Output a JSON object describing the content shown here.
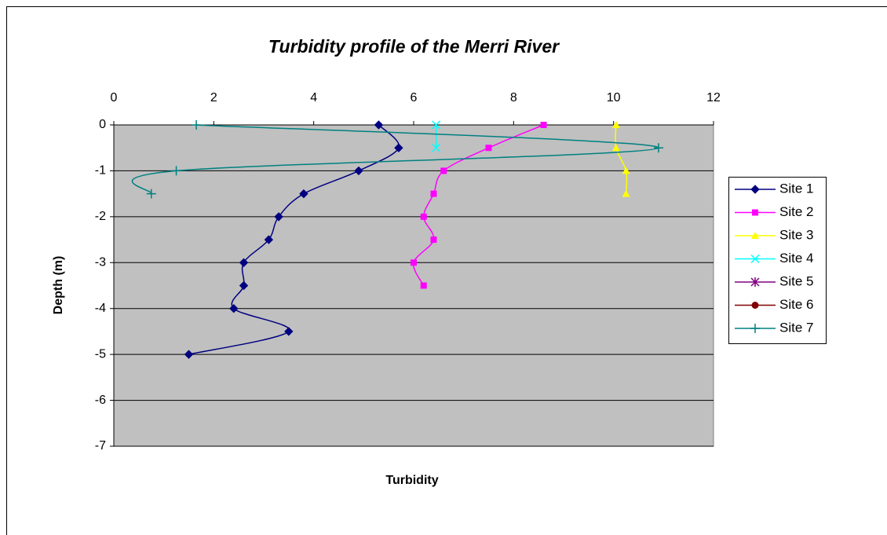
{
  "chart_data": {
    "type": "line",
    "title": "Turbidity profile of the Merri River",
    "xlabel": "Turbidity",
    "ylabel": "Depth (m)",
    "xlim": [
      0,
      12
    ],
    "xticks": [
      0,
      2,
      4,
      6,
      8,
      10,
      12
    ],
    "ylim": [
      -7,
      0
    ],
    "yticks": [
      0,
      -1,
      -2,
      -3,
      -4,
      -5,
      -6,
      -7
    ],
    "grid": true,
    "smooth": true,
    "legend": "right",
    "series": [
      {
        "name": "Site 1",
        "color": "#000080",
        "marker": "diamond",
        "x": [
          5.3,
          5.7,
          4.9,
          3.8,
          3.3,
          3.1,
          2.6,
          2.6,
          2.4,
          3.5,
          1.5
        ],
        "values": [
          0,
          -0.5,
          -1,
          -1.5,
          -2,
          -2.5,
          -3,
          -3.5,
          -4,
          -4.5,
          -5
        ]
      },
      {
        "name": "Site 2",
        "color": "#FF00FF",
        "marker": "square",
        "x": [
          8.6,
          7.5,
          6.6,
          6.4,
          6.2,
          6.4,
          6.0,
          6.2
        ],
        "values": [
          0,
          -0.5,
          -1,
          -1.5,
          -2,
          -2.5,
          -3,
          -3.5
        ]
      },
      {
        "name": "Site 3",
        "color": "#FFFF00",
        "marker": "triangle",
        "x": [
          10.05,
          10.05,
          10.25,
          10.25
        ],
        "values": [
          0,
          -0.5,
          -1,
          -1.5
        ]
      },
      {
        "name": "Site 4",
        "color": "#00FFFF",
        "marker": "x",
        "x": [
          6.45,
          6.45
        ],
        "values": [
          0,
          -0.5
        ]
      },
      {
        "name": "Site 5",
        "color": "#800080",
        "marker": "star",
        "x": [],
        "values": []
      },
      {
        "name": "Site 6",
        "color": "#800000",
        "marker": "circle",
        "x": [],
        "values": []
      },
      {
        "name": "Site 7",
        "color": "#008080",
        "marker": "plus",
        "x": [
          1.65,
          10.9,
          1.25,
          0.75
        ],
        "values": [
          0,
          -0.5,
          -1,
          -1.5
        ]
      }
    ]
  }
}
